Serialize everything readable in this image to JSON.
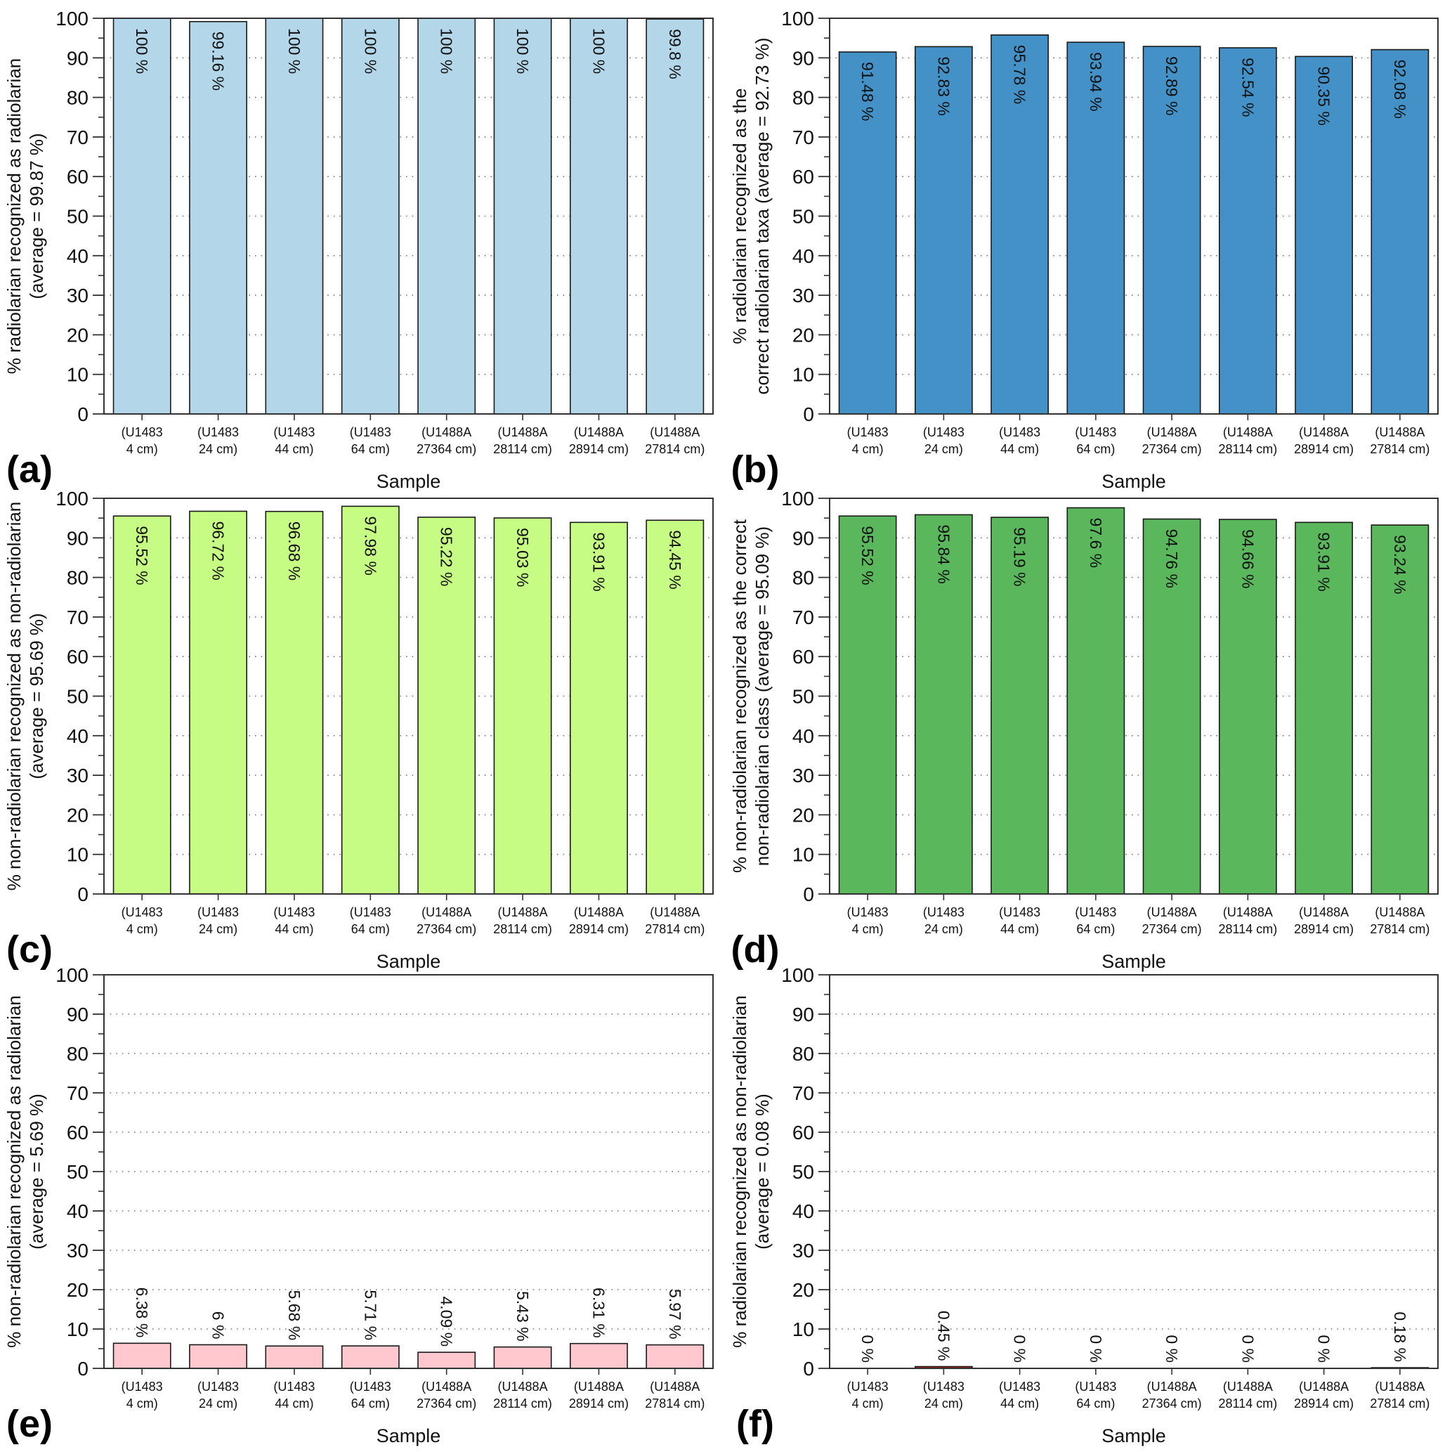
{
  "chart_data": [
    {
      "panel": "(a)",
      "type": "bar",
      "categories": [
        [
          "(U1483",
          "4 cm)"
        ],
        [
          "(U1483",
          "24 cm)"
        ],
        [
          "(U1483",
          "44 cm)"
        ],
        [
          "(U1483",
          "64 cm)"
        ],
        [
          "(U1488A",
          "27364 cm)"
        ],
        [
          "(U1488A",
          "28114 cm)"
        ],
        [
          "(U1488A",
          "28914 cm)"
        ],
        [
          "(U1488A",
          "27814 cm)"
        ]
      ],
      "values": [
        100,
        99.16,
        100,
        100,
        100,
        100,
        100,
        99.8
      ],
      "value_labels": [
        "100 %",
        "99.16 %",
        "100 %",
        "100 %",
        "100 %",
        "100 %",
        "100 %",
        "99.8 %"
      ],
      "ylabel": [
        "% radiolarian recognized as radiolarian",
        "(average = 99.87 %)"
      ],
      "xlabel": "Sample",
      "ylim": [
        0,
        100
      ],
      "yticks": [
        0,
        10,
        20,
        30,
        40,
        50,
        60,
        70,
        80,
        90,
        100
      ],
      "grid": "horizontal dotted",
      "bar_color": "#b3d7e9"
    },
    {
      "panel": "(b)",
      "type": "bar",
      "categories": [
        [
          "(U1483",
          "4 cm)"
        ],
        [
          "(U1483",
          "24 cm)"
        ],
        [
          "(U1483",
          "44 cm)"
        ],
        [
          "(U1483",
          "64 cm)"
        ],
        [
          "(U1488A",
          "27364 cm)"
        ],
        [
          "(U1488A",
          "28114 cm)"
        ],
        [
          "(U1488A",
          "28914 cm)"
        ],
        [
          "(U1488A",
          "27814 cm)"
        ]
      ],
      "values": [
        91.48,
        92.83,
        95.78,
        93.94,
        92.89,
        92.54,
        90.35,
        92.08
      ],
      "value_labels": [
        "91.48 %",
        "92.83 %",
        "95.78 %",
        "93.94 %",
        "92.89 %",
        "92.54 %",
        "90.35 %",
        "92.08 %"
      ],
      "ylabel": [
        "% radiolarian recognized as the",
        "correct radiolarian taxa (average = 92.73 %)"
      ],
      "xlabel": "Sample",
      "ylim": [
        0,
        100
      ],
      "yticks": [
        0,
        10,
        20,
        30,
        40,
        50,
        60,
        70,
        80,
        90,
        100
      ],
      "grid": "horizontal dotted",
      "bar_color": "#4391c6"
    },
    {
      "panel": "(c)",
      "type": "bar",
      "categories": [
        [
          "(U1483",
          "4 cm)"
        ],
        [
          "(U1483",
          "24 cm)"
        ],
        [
          "(U1483",
          "44 cm)"
        ],
        [
          "(U1483",
          "64 cm)"
        ],
        [
          "(U1488A",
          "27364 cm)"
        ],
        [
          "(U1488A",
          "28114 cm)"
        ],
        [
          "(U1488A",
          "28914 cm)"
        ],
        [
          "(U1488A",
          "27814 cm)"
        ]
      ],
      "values": [
        95.52,
        96.72,
        96.68,
        97.98,
        95.22,
        95.03,
        93.91,
        94.45
      ],
      "value_labels": [
        "95.52 %",
        "96.72 %",
        "96.68 %",
        "97.98 %",
        "95.22 %",
        "95.03 %",
        "93.91 %",
        "94.45 %"
      ],
      "ylabel": [
        "% non-radiolarian recognized as non-radiolarian",
        "(average = 95.69 %)"
      ],
      "xlabel": "Sample",
      "ylim": [
        0,
        100
      ],
      "yticks": [
        0,
        10,
        20,
        30,
        40,
        50,
        60,
        70,
        80,
        90,
        100
      ],
      "grid": "horizontal dotted",
      "bar_color": "#c6fb84"
    },
    {
      "panel": "(d)",
      "type": "bar",
      "categories": [
        [
          "(U1483",
          "4 cm)"
        ],
        [
          "(U1483",
          "24 cm)"
        ],
        [
          "(U1483",
          "44 cm)"
        ],
        [
          "(U1483",
          "64 cm)"
        ],
        [
          "(U1488A",
          "27364 cm)"
        ],
        [
          "(U1488A",
          "28114 cm)"
        ],
        [
          "(U1488A",
          "28914 cm)"
        ],
        [
          "(U1488A",
          "27814 cm)"
        ]
      ],
      "values": [
        95.52,
        95.84,
        95.19,
        97.6,
        94.76,
        94.66,
        93.91,
        93.24
      ],
      "value_labels": [
        "95.52 %",
        "95.84 %",
        "95.19 %",
        "97.6 %",
        "94.76 %",
        "94.66 %",
        "93.91 %",
        "93.24 %"
      ],
      "ylabel": [
        "% non-radiolarian recognized as the correct",
        "non-radiolarian class (average = 95.09 %)"
      ],
      "xlabel": "Sample",
      "ylim": [
        0,
        100
      ],
      "yticks": [
        0,
        10,
        20,
        30,
        40,
        50,
        60,
        70,
        80,
        90,
        100
      ],
      "grid": "horizontal dotted",
      "bar_color": "#5ab75b"
    },
    {
      "panel": "(e)",
      "type": "bar",
      "categories": [
        [
          "(U1483",
          "4 cm)"
        ],
        [
          "(U1483",
          "24 cm)"
        ],
        [
          "(U1483",
          "44 cm)"
        ],
        [
          "(U1483",
          "64 cm)"
        ],
        [
          "(U1488A",
          "27364 cm)"
        ],
        [
          "(U1488A",
          "28114 cm)"
        ],
        [
          "(U1488A",
          "28914 cm)"
        ],
        [
          "(U1488A",
          "27814 cm)"
        ]
      ],
      "values": [
        6.38,
        6,
        5.68,
        5.71,
        4.09,
        5.43,
        6.31,
        5.97
      ],
      "value_labels": [
        "6.38 %",
        "6 %",
        "5.68 %",
        "5.71 %",
        "4.09 %",
        "5.43 %",
        "6.31 %",
        "5.97 %"
      ],
      "ylabel": [
        "% non-radiolarian recognized as radiolarian",
        "(average = 5.69 %)"
      ],
      "xlabel": "Sample",
      "ylim": [
        0,
        100
      ],
      "yticks": [
        0,
        10,
        20,
        30,
        40,
        50,
        60,
        70,
        80,
        90,
        100
      ],
      "grid": "horizontal dotted",
      "bar_color": "#ffc8cf"
    },
    {
      "panel": "(f)",
      "type": "bar",
      "categories": [
        [
          "(U1483",
          "4 cm)"
        ],
        [
          "(U1483",
          "24 cm)"
        ],
        [
          "(U1483",
          "44 cm)"
        ],
        [
          "(U1483",
          "64 cm)"
        ],
        [
          "(U1488A",
          "27364 cm)"
        ],
        [
          "(U1488A",
          "28114 cm)"
        ],
        [
          "(U1488A",
          "28914 cm)"
        ],
        [
          "(U1488A",
          "27814 cm)"
        ]
      ],
      "values": [
        0,
        0.45,
        0,
        0,
        0,
        0,
        0,
        0.18
      ],
      "value_labels": [
        "0 %",
        "0.45 %",
        "0 %",
        "0 %",
        "0 %",
        "0 %",
        "0 %",
        "0.18 %"
      ],
      "ylabel": [
        "% radiolarian recognized as non-radiolarian",
        "(average = 0.08 %)"
      ],
      "xlabel": "Sample",
      "ylim": [
        0,
        100
      ],
      "yticks": [
        0,
        10,
        20,
        30,
        40,
        50,
        60,
        70,
        80,
        90,
        100
      ],
      "grid": "horizontal dotted",
      "bar_color": "#c0231e"
    }
  ]
}
